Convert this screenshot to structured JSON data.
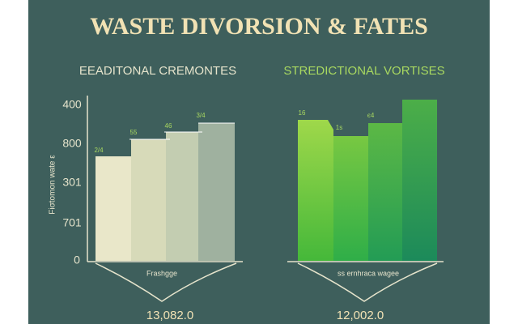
{
  "header": {
    "title": "WASTE DIVORSION & FATES"
  },
  "panels": [
    {
      "subtitle": "EEADITONAL CREMONTES",
      "axis_title": "Fiσtοmon wate ε",
      "axis_labels": [
        "400",
        "800",
        "301",
        "701",
        "0"
      ],
      "bar_labels": [
        "2/4",
        "55",
        "46",
        "3/4"
      ],
      "caption": "Frashgge",
      "total": "13,082.0"
    },
    {
      "subtitle": "STREDICTIONAL VORTISES",
      "bar_labels": [
        "16",
        "1s",
        "є4"
      ],
      "caption": "ss ernhraca wagee",
      "total": "12,002.0"
    }
  ]
}
